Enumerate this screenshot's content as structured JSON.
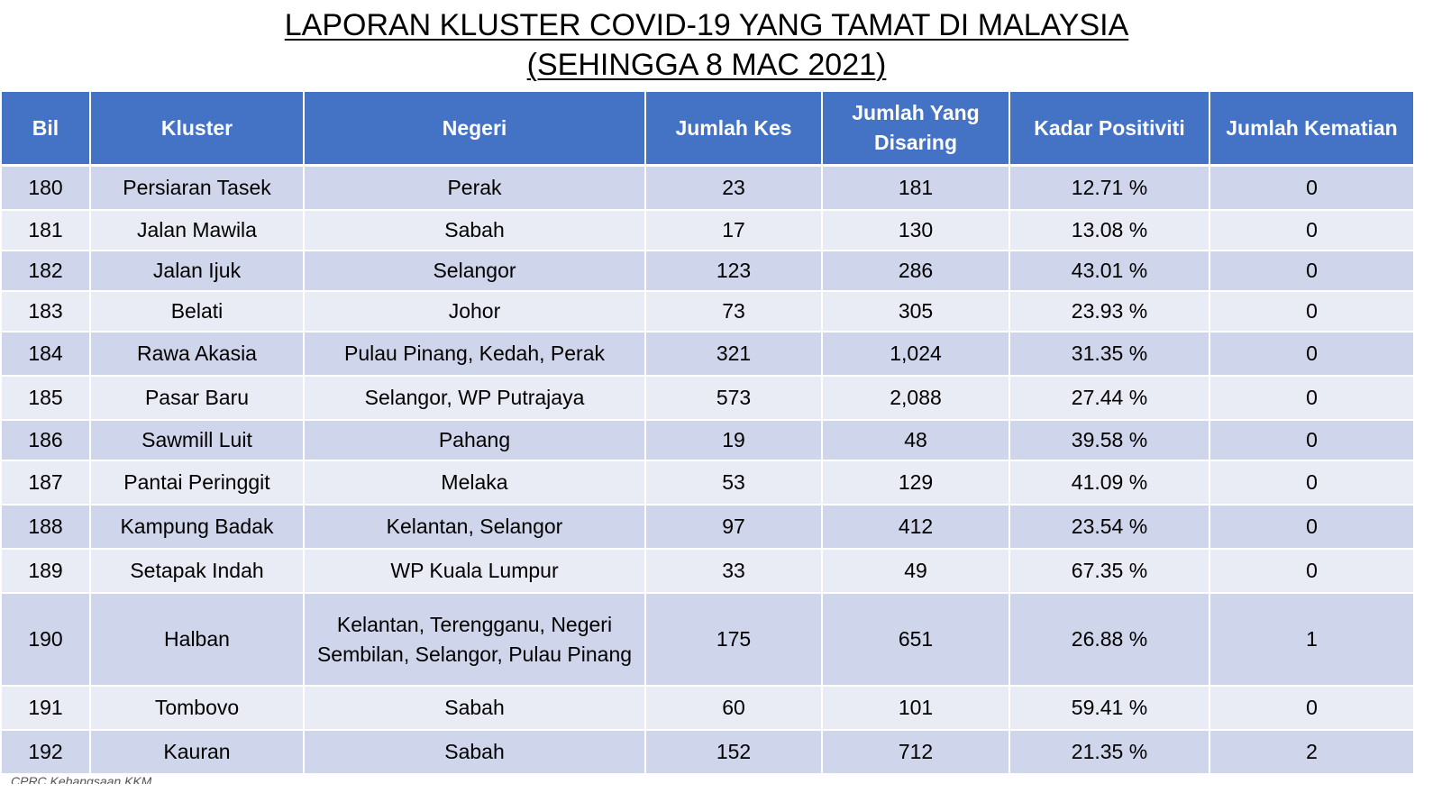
{
  "title": {
    "line1": "LAPORAN KLUSTER COVID-19 YANG TAMAT DI MALAYSIA",
    "line2": "(SEHINGGA  8 MAC 2021)"
  },
  "table": {
    "headers": {
      "bil": "Bil",
      "kluster": "Kluster",
      "negeri": "Negeri",
      "jumlah_kes": "Jumlah Kes",
      "jumlah_disaring": "Jumlah Yang Disaring",
      "kadar_positiviti": "Kadar Positiviti",
      "jumlah_kematian": "Jumlah Kematian"
    },
    "rows": [
      {
        "bil": "180",
        "kluster": "Persiaran Tasek",
        "negeri": "Perak",
        "kes": "23",
        "disaring": "181",
        "positiviti": "12.71 %",
        "kematian": "0"
      },
      {
        "bil": "181",
        "kluster": "Jalan Mawila",
        "negeri": "Sabah",
        "kes": "17",
        "disaring": "130",
        "positiviti": "13.08 %",
        "kematian": "0"
      },
      {
        "bil": "182",
        "kluster": "Jalan Ijuk",
        "negeri": "Selangor",
        "kes": "123",
        "disaring": "286",
        "positiviti": "43.01 %",
        "kematian": "0"
      },
      {
        "bil": "183",
        "kluster": "Belati",
        "negeri": "Johor",
        "kes": "73",
        "disaring": "305",
        "positiviti": "23.93 %",
        "kematian": "0"
      },
      {
        "bil": "184",
        "kluster": "Rawa Akasia",
        "negeri": "Pulau Pinang, Kedah, Perak",
        "kes": "321",
        "disaring": "1,024",
        "positiviti": "31.35 %",
        "kematian": "0"
      },
      {
        "bil": "185",
        "kluster": "Pasar Baru",
        "negeri": "Selangor, WP Putrajaya",
        "kes": "573",
        "disaring": "2,088",
        "positiviti": "27.44 %",
        "kematian": "0"
      },
      {
        "bil": "186",
        "kluster": "Sawmill Luit",
        "negeri": "Pahang",
        "kes": "19",
        "disaring": "48",
        "positiviti": "39.58 %",
        "kematian": "0"
      },
      {
        "bil": "187",
        "kluster": "Pantai Peringgit",
        "negeri": "Melaka",
        "kes": "53",
        "disaring": "129",
        "positiviti": "41.09 %",
        "kematian": "0"
      },
      {
        "bil": "188",
        "kluster": "Kampung Badak",
        "negeri": "Kelantan, Selangor",
        "kes": "97",
        "disaring": "412",
        "positiviti": "23.54 %",
        "kematian": "0"
      },
      {
        "bil": "189",
        "kluster": "Setapak Indah",
        "negeri": "WP Kuala Lumpur",
        "kes": "33",
        "disaring": "49",
        "positiviti": "67.35 %",
        "kematian": "0"
      },
      {
        "bil": "190",
        "kluster": "Halban",
        "negeri": "Kelantan, Terengganu, Negeri Sembilan, Selangor, Pulau Pinang",
        "kes": "175",
        "disaring": "651",
        "positiviti": "26.88 %",
        "kematian": "1"
      },
      {
        "bil": "191",
        "kluster": "Tombovo",
        "negeri": "Sabah",
        "kes": "60",
        "disaring": "101",
        "positiviti": "59.41 %",
        "kematian": "0"
      },
      {
        "bil": "192",
        "kluster": "Kauran",
        "negeri": "Sabah",
        "kes": "152",
        "disaring": "712",
        "positiviti": "21.35 %",
        "kematian": "2"
      }
    ]
  },
  "footer": {
    "source": "CPRC Kebangsaan KKM"
  },
  "colors": {
    "header_bg": "#4472c4",
    "row_odd": "#cfd5ea",
    "row_even": "#e9ebf5"
  }
}
